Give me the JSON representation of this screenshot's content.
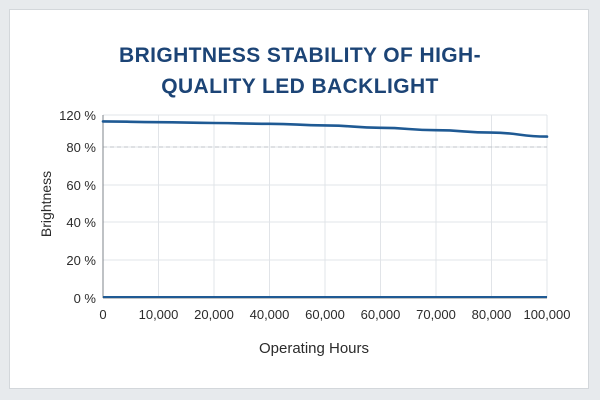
{
  "chart_data": {
    "type": "line",
    "title": [
      "BRIGHTNESS STABILITY OF HIGH-",
      "QUALITY LED BACKLIGHT"
    ],
    "xlabel": "Operating Hours",
    "ylabel": "Brightness",
    "x_tick_labels": [
      "0",
      "10,000",
      "20,000",
      "40,000",
      "60,000",
      "60,000",
      "70,000",
      "80,000",
      "100,000"
    ],
    "y_tick_labels": [
      "0 %",
      "20 %",
      "40 %",
      "60 %",
      "80 %",
      "120 %"
    ],
    "grid": true,
    "reference_line": {
      "y": 80,
      "style": "dashed"
    },
    "series": [
      {
        "color": "#1f5a94",
        "x": [
          "0",
          "10,000",
          "20,000",
          "40,000",
          "60,000",
          "60,000",
          "70,000",
          "80,000",
          "100,000"
        ],
        "y": [
          112,
          111,
          110,
          109,
          107,
          104,
          101,
          98,
          93
        ]
      }
    ],
    "baseline_series": {
      "color": "#1f5a94",
      "y": [
        0,
        0,
        0,
        0,
        0,
        0,
        0,
        0,
        0
      ]
    }
  },
  "colors": {
    "title": "#1c4476",
    "line": "#1f5a94",
    "grid": "#e1e4e8",
    "reference": "#bfc3c8",
    "axis": "#7f858b",
    "card_border": "#d3d7db",
    "background": "#e7eaed"
  }
}
